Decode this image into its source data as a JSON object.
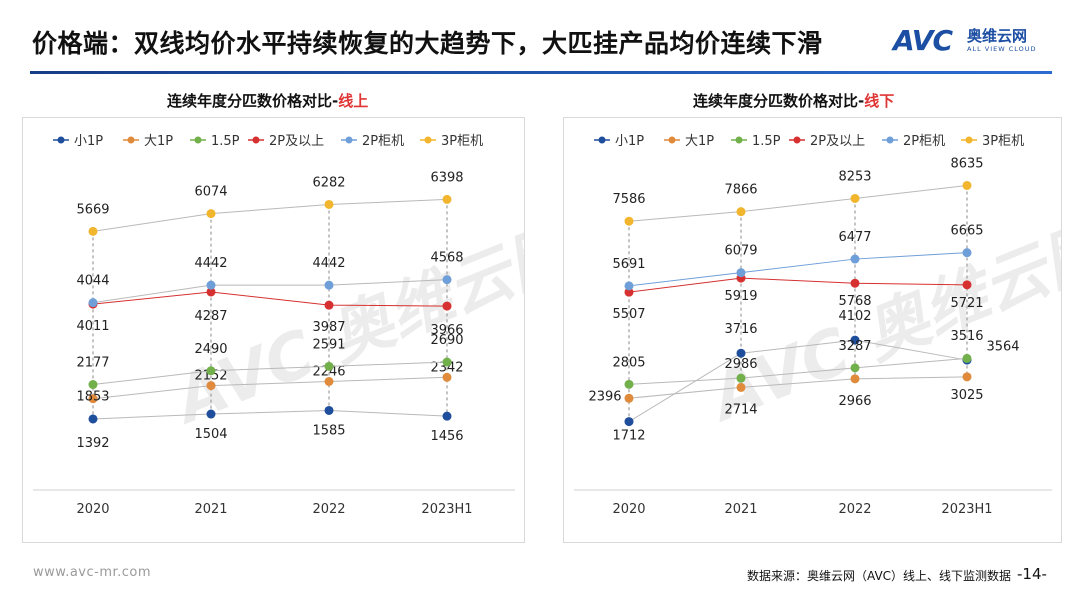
{
  "page": {
    "title": "价格端：双线均价水平持续恢复的大趋势下，大匹挂产品均价连续下滑",
    "brand_logo": "AVC",
    "brand_cn": "奥维云网",
    "brand_en": "ALL VIEW CLOUD",
    "watermark": "AVC 奥维云网 ALL VIEW CLOUD",
    "footer_url": "www.avc-mr.com",
    "source": "数据来源：奥维云网（AVC）线上、线下监测数据",
    "page_number": "-14-",
    "accent_color": "#1c4ea3"
  },
  "chart_data": [
    {
      "type": "line",
      "title_prefix": "连续年度分匹数价格对比-",
      "title_highlight": "线上",
      "categories": [
        "2020",
        "2021",
        "2022",
        "2023H1"
      ],
      "ylim": [
        0,
        7000
      ],
      "legend_position": "top",
      "series": [
        {
          "name": "小1P",
          "color": "#1f4e9c",
          "values": [
            1392,
            1504,
            1585,
            1456
          ]
        },
        {
          "name": "大1P",
          "color": "#e08a3c",
          "values": [
            1853,
            2152,
            2246,
            2342
          ]
        },
        {
          "name": "1.5P",
          "color": "#72b04b",
          "values": [
            2177,
            2490,
            2591,
            2690
          ]
        },
        {
          "name": "2P及以上",
          "color": "#d63030",
          "values": [
            4011,
            4287,
            3987,
            3966
          ]
        },
        {
          "name": "2P柜机",
          "color": "#6f9fd8",
          "values": [
            4044,
            4442,
            4442,
            4568
          ]
        },
        {
          "name": "3P柜机",
          "color": "#f2b52e",
          "values": [
            5669,
            6074,
            6282,
            6398
          ]
        }
      ]
    },
    {
      "type": "line",
      "title_prefix": "连续年度分匹数价格对比-",
      "title_highlight": "线下",
      "categories": [
        "2020",
        "2021",
        "2022",
        "2023H1"
      ],
      "ylim": [
        0,
        9000
      ],
      "legend_position": "top",
      "series": [
        {
          "name": "小1P",
          "color": "#1f4e9c",
          "values": [
            1712,
            3716,
            4102,
            3516
          ]
        },
        {
          "name": "大1P",
          "color": "#e08a3c",
          "values": [
            2396,
            2714,
            2966,
            3025
          ]
        },
        {
          "name": "1.5P",
          "color": "#72b04b",
          "values": [
            2805,
            2986,
            3287,
            3564
          ]
        },
        {
          "name": "2P及以上",
          "color": "#d63030",
          "values": [
            5507,
            5919,
            5768,
            5721
          ]
        },
        {
          "name": "2P柜机",
          "color": "#6f9fd8",
          "values": [
            5691,
            6079,
            6477,
            6665
          ]
        },
        {
          "name": "3P柜机",
          "color": "#f2b52e",
          "values": [
            7586,
            7866,
            8253,
            8635
          ]
        }
      ]
    }
  ]
}
